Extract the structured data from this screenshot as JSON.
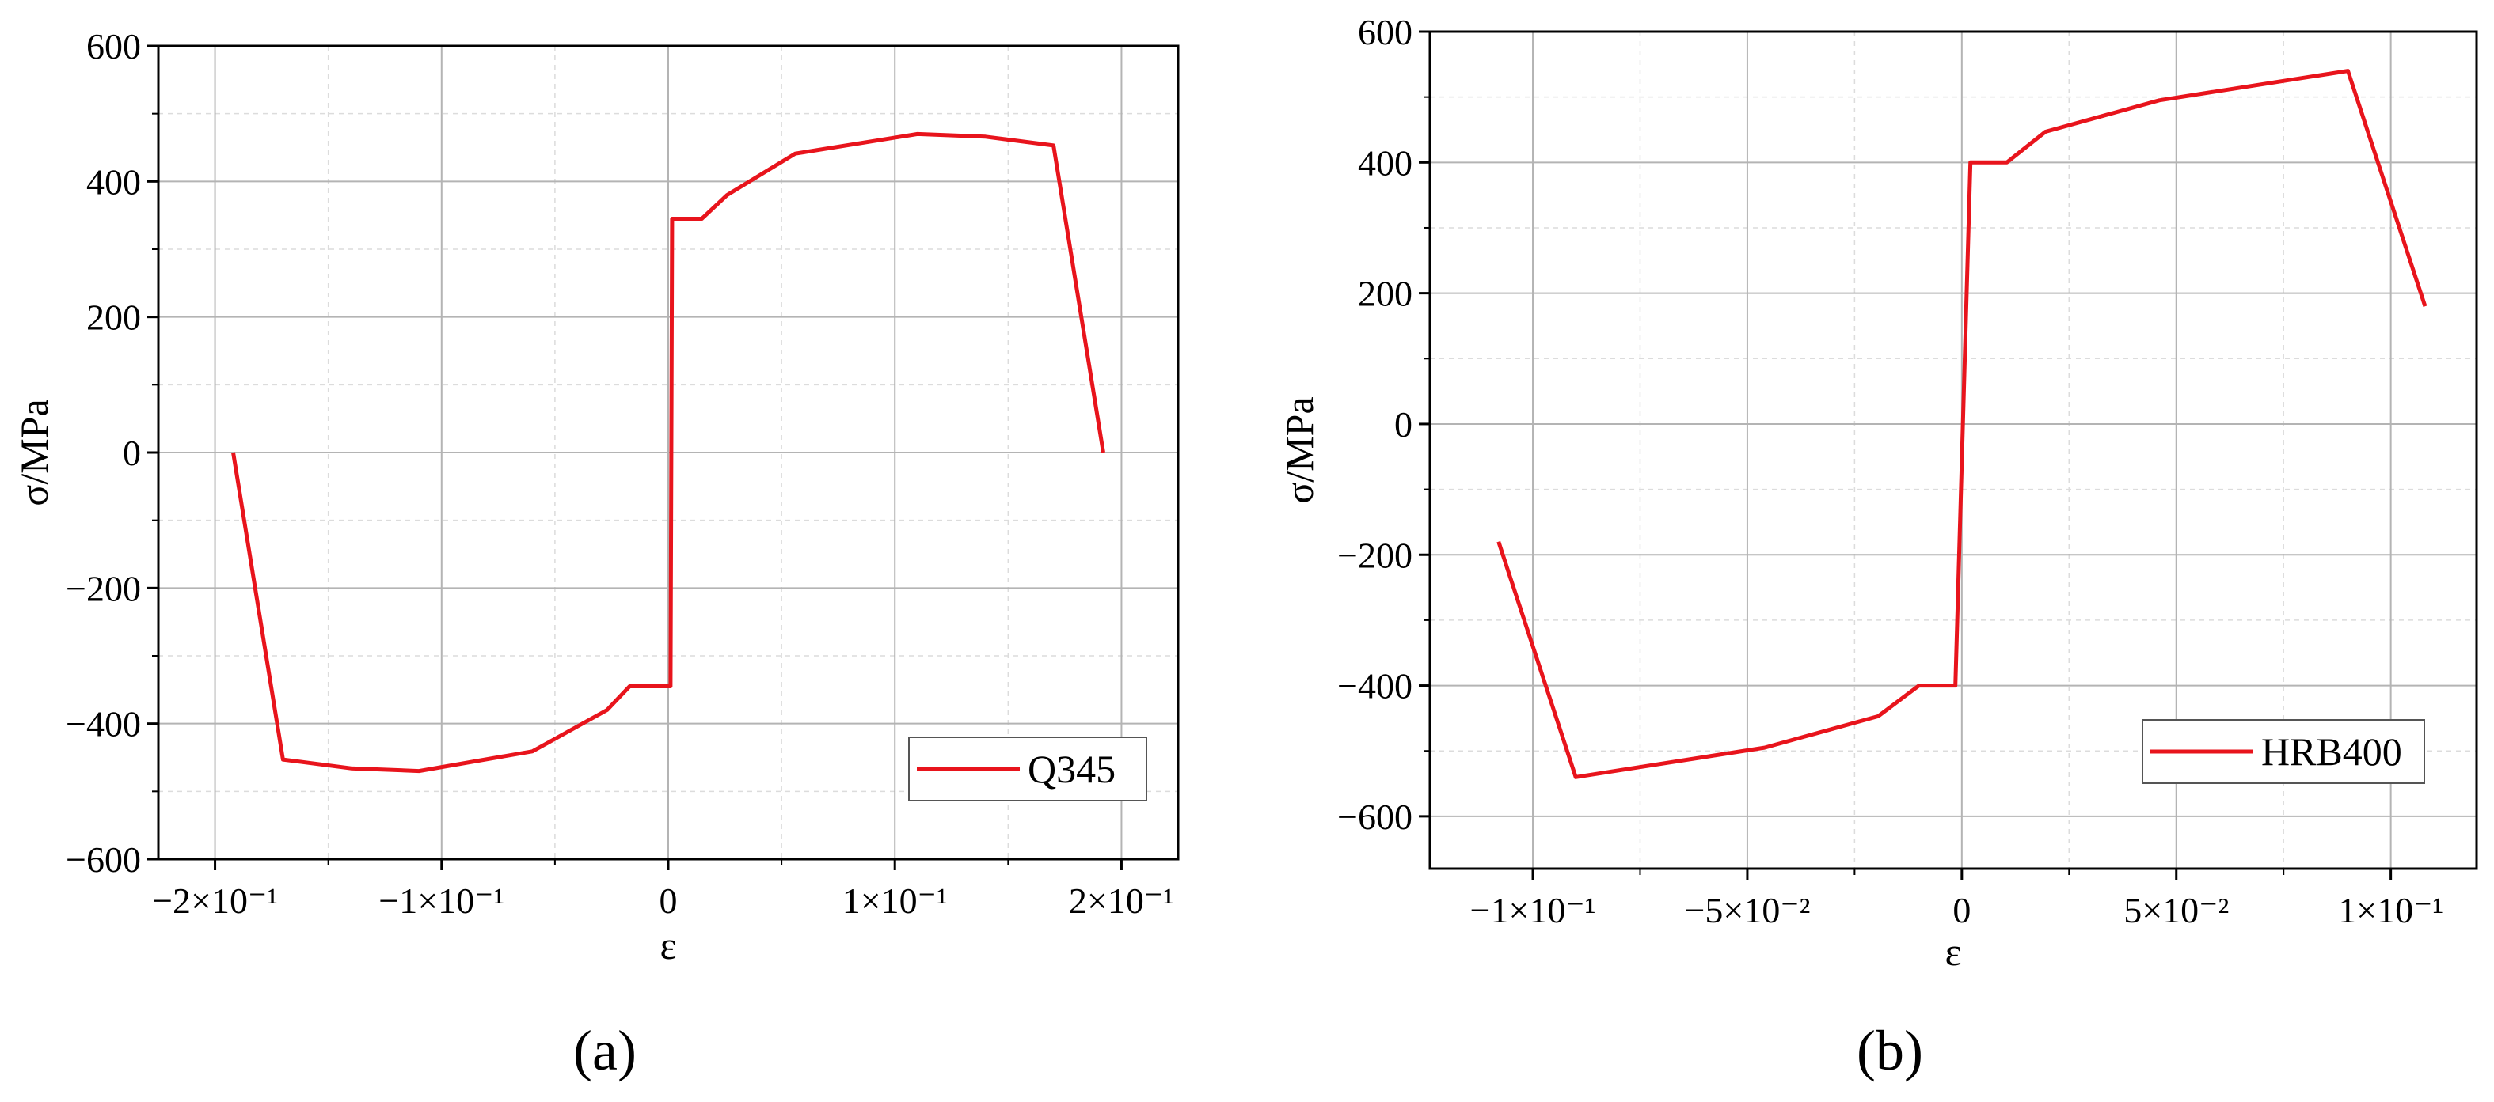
{
  "chart_data": [
    {
      "type": "line",
      "panel_label": "(a)",
      "xlabel": "ε",
      "ylabel": "σ/MPa",
      "xlim": [
        -0.225,
        0.225
      ],
      "ylim": [
        -600,
        600
      ],
      "xticks": [
        -0.2,
        -0.1,
        0,
        0.1,
        0.2
      ],
      "xtick_labels": [
        "−2×10⁻¹",
        "−1×10⁻¹",
        "0",
        "1×10⁻¹",
        "2×10⁻¹"
      ],
      "yticks": [
        -600,
        -400,
        -200,
        0,
        200,
        400,
        600
      ],
      "ytick_labels": [
        "−600",
        "−400",
        "−200",
        "0",
        "200",
        "400",
        "600"
      ],
      "grid": true,
      "legend_position": "bottom-right",
      "series": [
        {
          "name": "Q345",
          "color": "#e8141c",
          "x": [
            -0.192,
            -0.17,
            -0.14,
            -0.11,
            -0.06,
            -0.027,
            -0.017,
            -0.003,
            0.001,
            0.0017,
            0.0148,
            0.026,
            0.056,
            0.11,
            0.14,
            0.17,
            0.192
          ],
          "y": [
            0,
            -453,
            -466,
            -470,
            -441,
            -380,
            -345,
            -345,
            -345,
            345,
            345,
            380,
            441,
            470,
            466,
            453,
            0
          ]
        }
      ]
    },
    {
      "type": "line",
      "panel_label": "(b)",
      "xlabel": "ε",
      "ylabel": "σ/MPa",
      "xlim": [
        -0.124,
        0.12
      ],
      "ylim": [
        -680,
        600
      ],
      "xticks": [
        -0.1,
        -0.05,
        0,
        0.05,
        0.1
      ],
      "xtick_labels": [
        "−1×10⁻¹",
        "−5×10⁻²",
        "0",
        "5×10⁻²",
        "1×10⁻¹"
      ],
      "yticks": [
        -600,
        -400,
        -200,
        0,
        200,
        400,
        600
      ],
      "ytick_labels": [
        "−600",
        "−400",
        "−200",
        "0",
        "200",
        "400",
        "600"
      ],
      "grid": true,
      "legend_position": "bottom-right",
      "series": [
        {
          "name": "HRB400",
          "color": "#e8141c",
          "x": [
            -0.108,
            -0.09,
            -0.046,
            -0.0195,
            -0.01,
            -0.0015,
            0.002,
            0.0105,
            0.0195,
            0.046,
            0.09,
            0.108
          ],
          "y": [
            -180,
            -540,
            -495,
            -447,
            -400,
            -400,
            400,
            400,
            447,
            495,
            540,
            180
          ]
        }
      ]
    }
  ]
}
